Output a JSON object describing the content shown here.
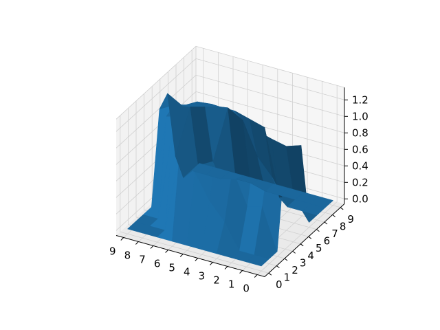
{
  "chart_data": {
    "type": "surface3d",
    "title": "",
    "xlabel": "",
    "ylabel": "",
    "zlabel": "",
    "x_ticks": [
      "0",
      "1",
      "2",
      "3",
      "4",
      "5",
      "6",
      "7",
      "8",
      "9"
    ],
    "y_ticks": [
      "0",
      "1",
      "2",
      "3",
      "4",
      "5",
      "6",
      "7",
      "8",
      "9"
    ],
    "z_ticks": [
      "0.0",
      "0.2",
      "0.4",
      "0.6",
      "0.8",
      "1.0",
      "1.2"
    ],
    "zlim": [
      0,
      1.3
    ],
    "surface_color": "#1f77b4",
    "grid": true,
    "z_rows": [
      [
        0.0,
        0.0,
        0.0,
        1.1,
        1.0,
        1.02,
        0.0,
        0.0,
        0.0,
        0.0
      ],
      [
        0.0,
        0.0,
        0.5,
        1.1,
        1.02,
        0.96,
        0.25,
        0.0,
        0.0,
        0.0
      ],
      [
        0.0,
        0.0,
        0.45,
        1.1,
        1.05,
        1.0,
        0.2,
        0.0,
        0.0,
        0.0
      ],
      [
        0.0,
        0.3,
        0.85,
        1.12,
        1.1,
        1.05,
        1.0,
        0.3,
        0.0,
        0.0
      ],
      [
        0.0,
        0.5,
        1.1,
        1.18,
        1.15,
        1.12,
        1.05,
        0.5,
        0.0,
        0.0
      ],
      [
        0.0,
        0.8,
        1.2,
        1.22,
        1.2,
        1.18,
        1.1,
        0.9,
        0.05,
        0.0
      ],
      [
        0.0,
        1.05,
        1.2,
        1.22,
        1.25,
        1.22,
        1.1,
        1.0,
        0.05,
        0.0
      ],
      [
        0.0,
        0.0,
        1.18,
        1.2,
        1.25,
        1.2,
        1.05,
        0.3,
        0.0,
        0.0
      ],
      [
        0.0,
        0.0,
        0.0,
        1.15,
        1.2,
        1.1,
        1.0,
        0.2,
        0.0,
        0.0
      ],
      [
        0.0,
        0.0,
        0.0,
        0.0,
        1.1,
        1.2,
        0.35,
        0.0,
        0.0,
        0.0
      ]
    ]
  }
}
